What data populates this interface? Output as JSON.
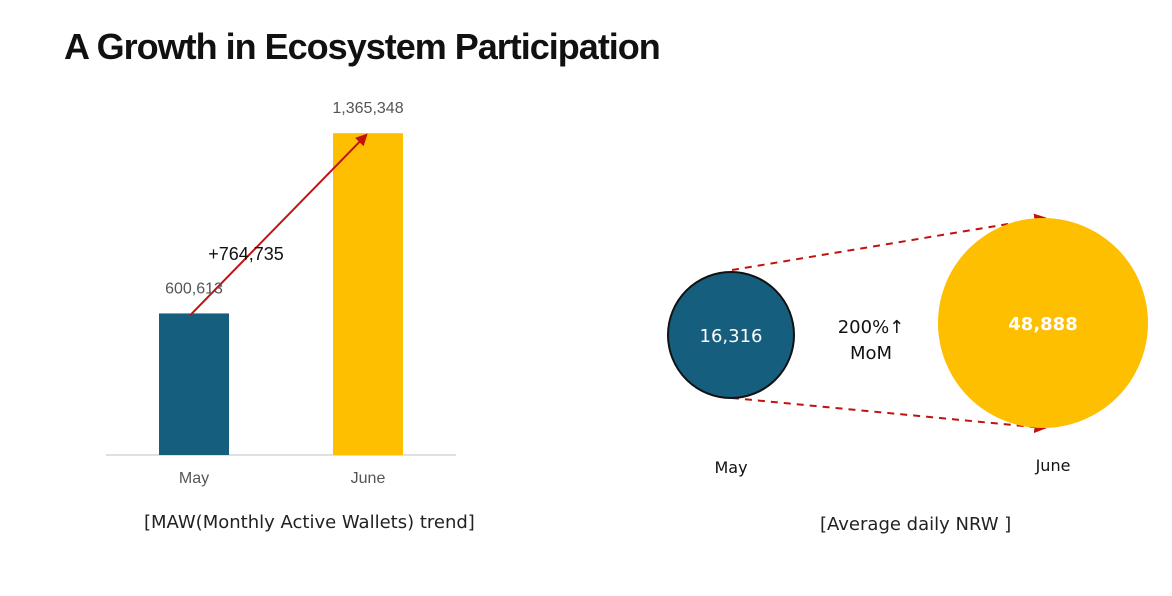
{
  "page": {
    "title": "A Growth in Ecosystem Participation"
  },
  "chart_data": [
    {
      "type": "bar",
      "categories": [
        "May",
        "June"
      ],
      "values": [
        600613,
        1365348
      ],
      "value_labels": [
        "600,613",
        "1,365,348"
      ],
      "colors": [
        "#155e7e",
        "#fdbf00"
      ],
      "ylim": [
        0,
        1400000
      ],
      "annotation": "+764,735",
      "grid": false,
      "caption": "[MAW(Monthly Active Wallets) trend]"
    },
    {
      "type": "bubble",
      "categories": [
        "May",
        "June"
      ],
      "values": [
        16316,
        48888
      ],
      "value_labels": [
        "16,316",
        "48,888"
      ],
      "colors": [
        "#155e7e",
        "#fdbf00"
      ],
      "annotation": [
        "200%↑",
        "MoM"
      ],
      "caption": "[Average daily NRW ]"
    }
  ]
}
